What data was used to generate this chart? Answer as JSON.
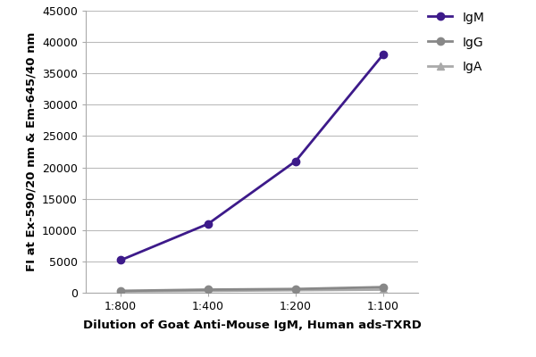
{
  "x_labels": [
    "1:800",
    "1:400",
    "1:200",
    "1:100"
  ],
  "x_values": [
    1,
    2,
    3,
    4
  ],
  "IgM": [
    5200,
    11000,
    21000,
    38000
  ],
  "IgG": [
    300,
    500,
    600,
    900
  ],
  "IgA": [
    200,
    300,
    400,
    500
  ],
  "IgM_color": "#3d1a8a",
  "IgG_color": "#888888",
  "IgA_color": "#aaaaaa",
  "ylabel": "FI at Ex-590/20 nm & Em-645/40 nm",
  "xlabel": "Dilution of Goat Anti-Mouse IgM, Human ads-TXRD",
  "ylim": [
    0,
    45000
  ],
  "yticks": [
    0,
    5000,
    10000,
    15000,
    20000,
    25000,
    30000,
    35000,
    40000,
    45000
  ],
  "axis_label_fontsize": 9.5,
  "tick_fontsize": 9,
  "legend_fontsize": 10,
  "background_color": "#ffffff",
  "grid_color": "#bbbbbb",
  "legend_labels": [
    "IgM",
    "IgG",
    "IgA"
  ]
}
